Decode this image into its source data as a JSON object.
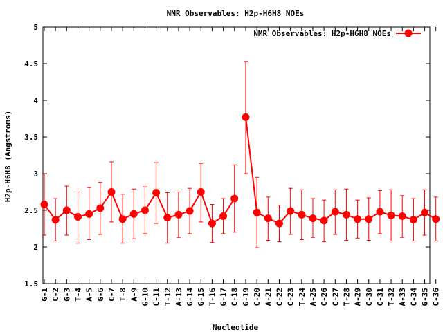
{
  "chart_data": {
    "type": "line",
    "title": "NMR Observables: H2p-H6H8 NOEs",
    "xlabel": "Nucleotide",
    "ylabel": "H2p-H6H8 (Angstroms)",
    "ylim": [
      1.5,
      5
    ],
    "yticks": [
      "1.5",
      "2",
      "2.5",
      "3",
      "3.5",
      "4",
      "4.5",
      "5"
    ],
    "legend": {
      "label": "NMR Observables: H2p-H6H8 NOEs",
      "position": "top-right"
    },
    "series": [
      {
        "name": "NMR Observables: H2p-H6H8 NOEs",
        "color": "#ff0000",
        "segments": [
          {
            "categories": [
              "G-1",
              "C-2",
              "G-3",
              "T-4",
              "A-5",
              "G-6",
              "C-7",
              "T-8",
              "A-9",
              "G-10",
              "C-11",
              "T-12",
              "A-13",
              "G-14",
              "G-15",
              "T-16",
              "G-17",
              "C-18"
            ],
            "values": [
              2.58,
              2.37,
              2.5,
              2.41,
              2.45,
              2.53,
              2.75,
              2.38,
              2.45,
              2.5,
              2.74,
              2.4,
              2.44,
              2.49,
              2.75,
              2.32,
              2.42,
              2.66
            ],
            "err_low": [
              2.16,
              2.08,
              2.16,
              2.05,
              2.1,
              2.17,
              2.34,
              2.05,
              2.11,
              2.18,
              2.32,
              2.05,
              2.13,
              2.18,
              2.34,
              2.06,
              2.18,
              2.2
            ],
            "err_high": [
              3.0,
              2.66,
              2.83,
              2.75,
              2.81,
              2.88,
              3.16,
              2.72,
              2.79,
              2.82,
              3.15,
              2.74,
              2.75,
              2.8,
              3.14,
              2.58,
              2.66,
              3.12
            ]
          },
          {
            "categories": [
              "G-19",
              "C-20",
              "A-21",
              "C-22",
              "C-23",
              "T-24",
              "A-25",
              "C-26",
              "C-27",
              "T-28",
              "A-29",
              "C-30",
              "C-31",
              "T-32",
              "A-33",
              "C-34",
              "G-35",
              "C-36"
            ],
            "values": [
              3.77,
              2.47,
              2.39,
              2.32,
              2.49,
              2.44,
              2.39,
              2.36,
              2.48,
              2.44,
              2.38,
              2.38,
              2.48,
              2.43,
              2.42,
              2.37,
              2.47,
              2.38
            ],
            "err_low": [
              3.0,
              1.99,
              2.09,
              2.07,
              2.17,
              2.1,
              2.13,
              2.07,
              2.17,
              2.09,
              2.12,
              2.09,
              2.18,
              2.08,
              2.13,
              2.08,
              2.16,
              2.08
            ],
            "err_high": [
              4.53,
              2.95,
              2.68,
              2.57,
              2.8,
              2.78,
              2.66,
              2.64,
              2.78,
              2.79,
              2.64,
              2.67,
              2.77,
              2.78,
              2.7,
              2.66,
              2.78,
              2.68
            ]
          }
        ]
      }
    ]
  }
}
